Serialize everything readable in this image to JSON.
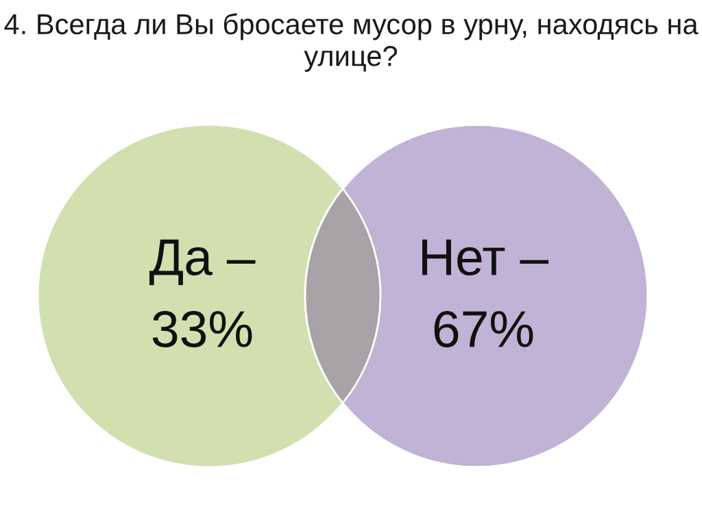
{
  "chart_data": {
    "type": "other",
    "title": "4. Всегда ли Вы бросаете мусор в урну, находясь на улице?",
    "categories": [
      "Да –",
      "Нет –"
    ],
    "values": [
      33,
      67
    ],
    "value_labels": [
      "33%",
      "67%"
    ],
    "colors": [
      "#d1e0ae",
      "#c0b3d5"
    ]
  }
}
